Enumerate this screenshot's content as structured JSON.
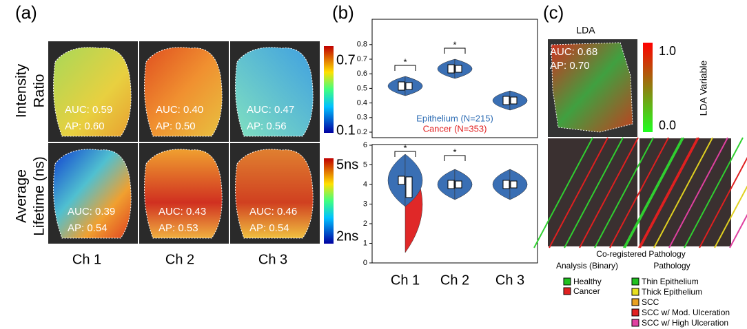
{
  "panel_a": {
    "label": "(a)",
    "row_labels": [
      [
        "Intensity",
        "Ratio"
      ],
      [
        "Average",
        "Lifetime (ns)"
      ]
    ],
    "colorbars": [
      [
        "0.7",
        "0.1"
      ],
      [
        "5ns",
        "2ns"
      ]
    ],
    "images": [
      [
        {
          "auc": "AUC: 0.59",
          "ap": "AP: 0.60"
        },
        {
          "auc": "AUC: 0.40",
          "ap": "AP: 0.50"
        },
        {
          "auc": "AUC: 0.47",
          "ap": "AP: 0.56"
        }
      ],
      [
        {
          "auc": "AUC: 0.39",
          "ap": "AP: 0.54"
        },
        {
          "auc": "AUC: 0.43",
          "ap": "AP: 0.53"
        },
        {
          "auc": "AUC: 0.46",
          "ap": "AP: 0.54"
        }
      ]
    ],
    "columns": [
      "Ch 1",
      "Ch 2",
      "Ch 3"
    ]
  },
  "panel_b": {
    "label": "(b)",
    "top_yticks": [
      0.2,
      0.3,
      0.4,
      0.5,
      0.6,
      0.7,
      0.8
    ],
    "bottom_yticks": [
      0,
      1,
      2,
      3,
      4,
      5,
      6
    ],
    "significance": "*",
    "legend": [
      "Epithelium (N=215)",
      "Cancer (N=353)"
    ],
    "columns": [
      "Ch 1",
      "Ch 2",
      "Ch 3"
    ]
  },
  "panel_c": {
    "label": "(c)",
    "title": "LDA",
    "auc": "AUC: 0.68",
    "ap": "AP: 0.70",
    "colorbar": [
      "1.0",
      "0.0"
    ],
    "colorbar_label": "LDA Variable",
    "caption": "Co-registered Pathology",
    "binary_title": "Analysis (Binary)",
    "pathology_title": "Pathology",
    "binary_legend": [
      "Healthy",
      "Cancer"
    ],
    "pathology_legend": [
      "Thin Epithelium",
      "Thick Epithelium",
      "SCC",
      "SCC w/ Mod. Ulceration",
      "SCC w/ High Ulceration"
    ]
  }
}
